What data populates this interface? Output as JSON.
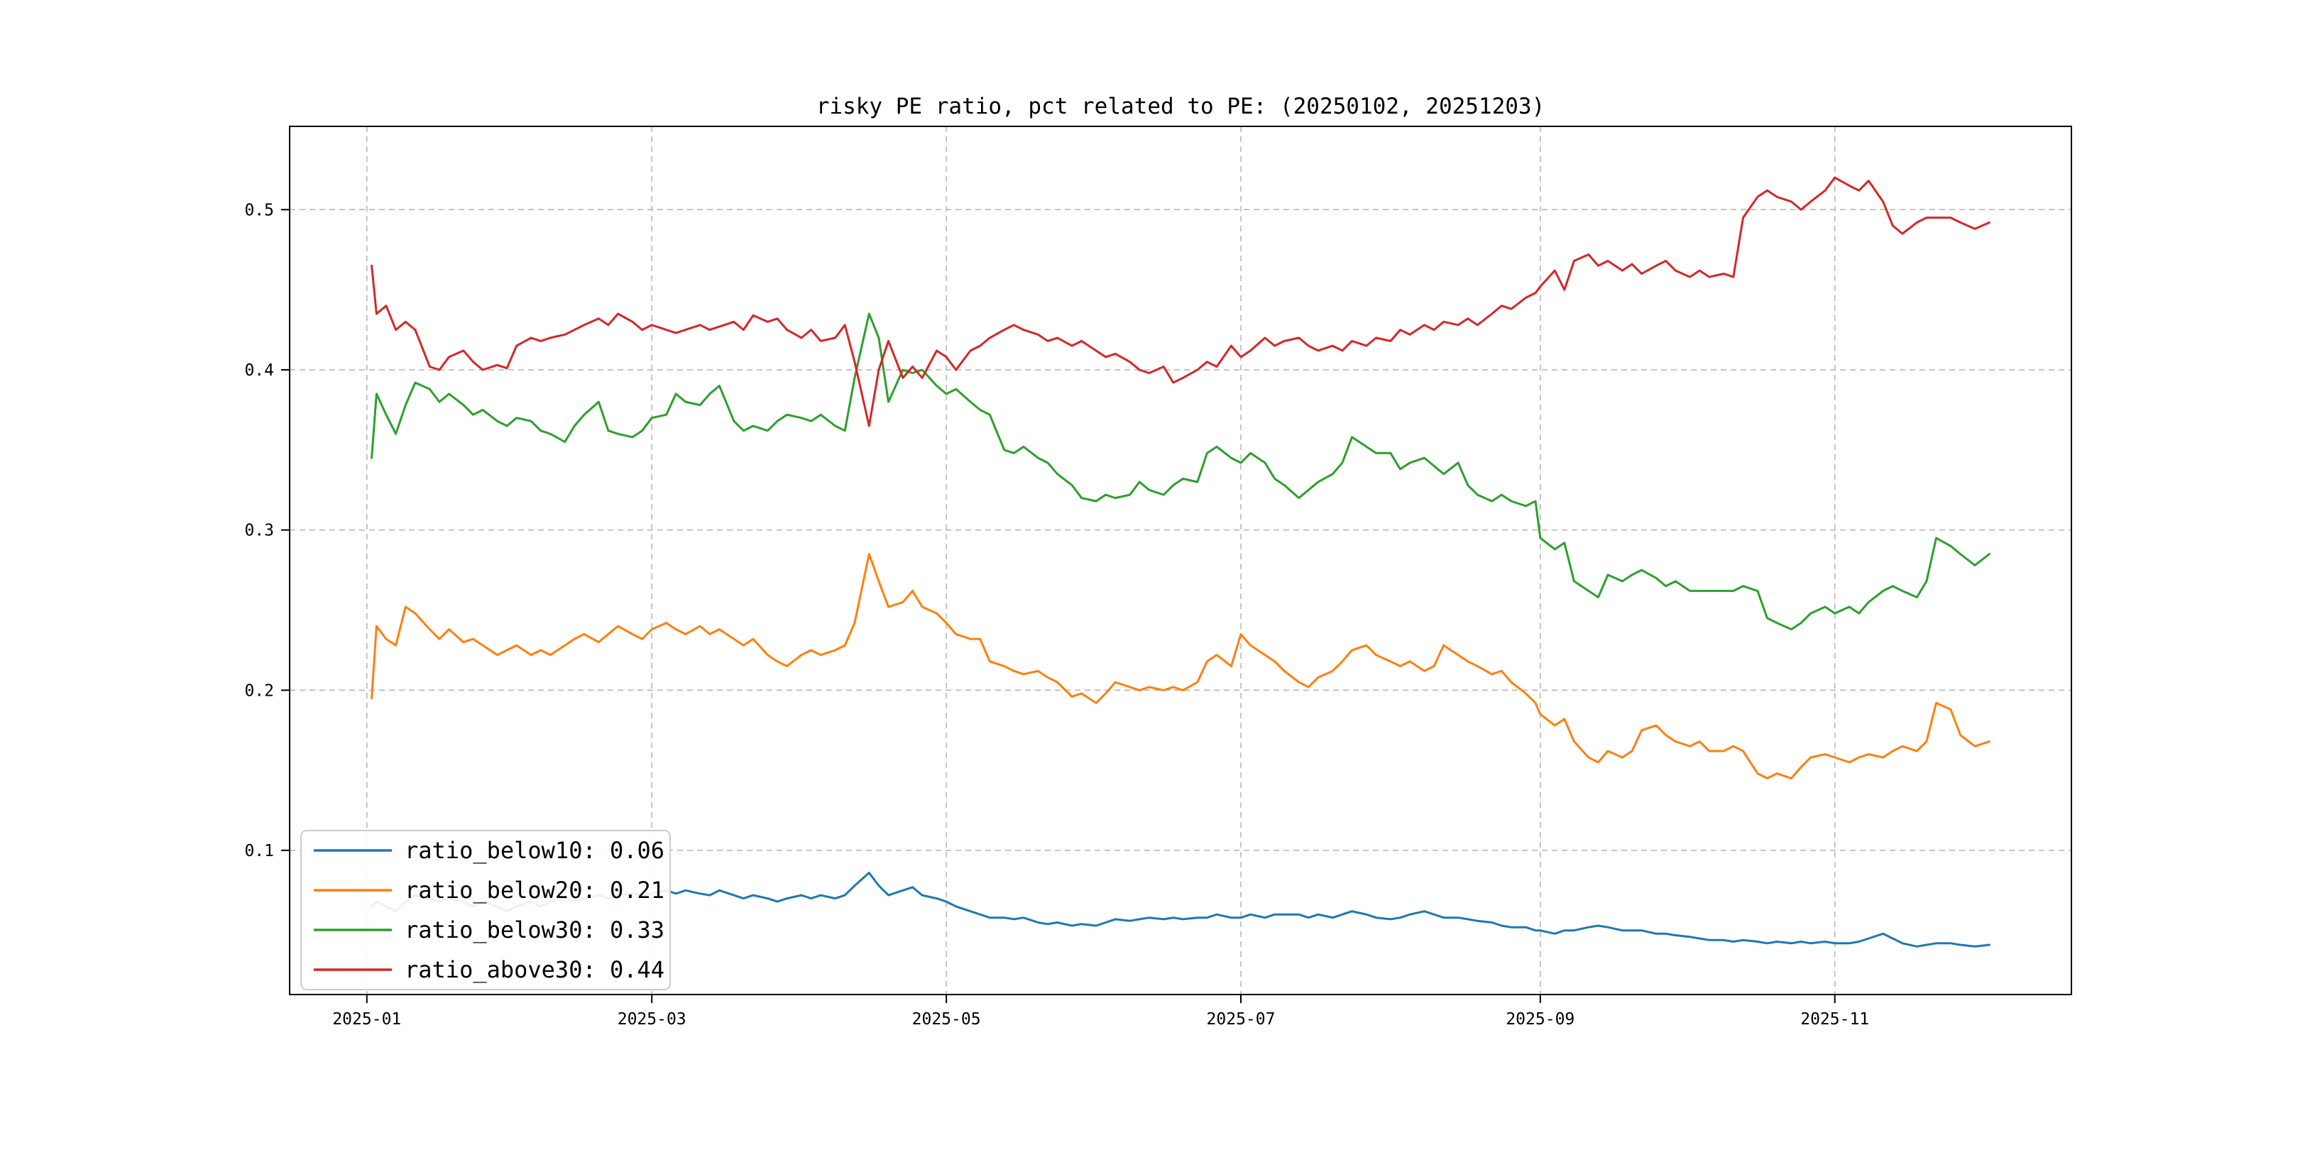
{
  "page": {
    "background": "#ffffff"
  },
  "chart_data": {
    "type": "line",
    "title": "risky PE ratio, pct related to PE: (20250102, 20251203)",
    "xlabel": "",
    "ylabel": "",
    "x_unit": "days since 2025-01-01",
    "xlim": [
      -16,
      353
    ],
    "ylim": [
      0.01,
      0.552
    ],
    "grid": {
      "visible": true,
      "style": "dashed",
      "color": "#b3b3b3"
    },
    "legend": {
      "position": "lower left"
    },
    "xticks": [
      {
        "pos": 0,
        "label": "2025-01"
      },
      {
        "pos": 59,
        "label": "2025-03"
      },
      {
        "pos": 120,
        "label": "2025-05"
      },
      {
        "pos": 181,
        "label": "2025-07"
      },
      {
        "pos": 243,
        "label": "2025-09"
      },
      {
        "pos": 304,
        "label": "2025-11"
      }
    ],
    "yticks": [
      {
        "pos": 0.1,
        "label": "0.1"
      },
      {
        "pos": 0.2,
        "label": "0.2"
      },
      {
        "pos": 0.3,
        "label": "0.3"
      },
      {
        "pos": 0.4,
        "label": "0.4"
      },
      {
        "pos": 0.5,
        "label": "0.5"
      }
    ],
    "x": [
      1,
      2,
      4,
      6,
      8,
      10,
      13,
      15,
      17,
      20,
      22,
      24,
      27,
      29,
      31,
      34,
      36,
      38,
      41,
      43,
      45,
      48,
      50,
      52,
      55,
      57,
      59,
      62,
      64,
      66,
      69,
      71,
      73,
      76,
      78,
      80,
      83,
      85,
      87,
      90,
      92,
      94,
      97,
      99,
      101,
      104,
      106,
      108,
      111,
      113,
      115,
      118,
      120,
      122,
      125,
      127,
      129,
      132,
      134,
      136,
      139,
      141,
      143,
      146,
      148,
      151,
      153,
      155,
      158,
      160,
      162,
      165,
      167,
      169,
      172,
      174,
      176,
      179,
      181,
      183,
      186,
      188,
      190,
      193,
      195,
      197,
      200,
      202,
      204,
      207,
      209,
      212,
      214,
      216,
      219,
      221,
      223,
      226,
      228,
      230,
      233,
      235,
      237,
      240,
      242,
      243,
      246,
      248,
      250,
      253,
      255,
      257,
      260,
      262,
      264,
      267,
      269,
      271,
      274,
      276,
      278,
      281,
      283,
      285,
      288,
      290,
      292,
      295,
      297,
      299,
      302,
      304,
      307,
      309,
      311,
      314,
      316,
      318,
      321,
      323,
      325,
      328,
      330,
      333,
      336
    ],
    "series": [
      {
        "name": "ratio_below10",
        "label": "ratio_below10: 0.06",
        "color": "#1f77b4",
        "values": [
          0.065,
          0.068,
          0.065,
          0.062,
          0.068,
          0.072,
          0.07,
          0.068,
          0.07,
          0.068,
          0.065,
          0.068,
          0.065,
          0.062,
          0.065,
          0.068,
          0.065,
          0.068,
          0.07,
          0.068,
          0.07,
          0.072,
          0.07,
          0.072,
          0.073,
          0.072,
          0.073,
          0.075,
          0.073,
          0.075,
          0.073,
          0.072,
          0.075,
          0.072,
          0.07,
          0.072,
          0.07,
          0.068,
          0.07,
          0.072,
          0.07,
          0.072,
          0.07,
          0.072,
          0.078,
          0.086,
          0.078,
          0.072,
          0.075,
          0.077,
          0.072,
          0.07,
          0.068,
          0.065,
          0.062,
          0.06,
          0.058,
          0.058,
          0.057,
          0.058,
          0.055,
          0.054,
          0.055,
          0.053,
          0.054,
          0.053,
          0.055,
          0.057,
          0.056,
          0.057,
          0.058,
          0.057,
          0.058,
          0.057,
          0.058,
          0.058,
          0.06,
          0.058,
          0.058,
          0.06,
          0.058,
          0.06,
          0.06,
          0.06,
          0.058,
          0.06,
          0.058,
          0.06,
          0.062,
          0.06,
          0.058,
          0.057,
          0.058,
          0.06,
          0.062,
          0.06,
          0.058,
          0.058,
          0.057,
          0.056,
          0.055,
          0.053,
          0.052,
          0.052,
          0.05,
          0.05,
          0.048,
          0.05,
          0.05,
          0.052,
          0.053,
          0.052,
          0.05,
          0.05,
          0.05,
          0.048,
          0.048,
          0.047,
          0.046,
          0.045,
          0.044,
          0.044,
          0.043,
          0.044,
          0.043,
          0.042,
          0.043,
          0.042,
          0.043,
          0.042,
          0.043,
          0.042,
          0.042,
          0.043,
          0.045,
          0.048,
          0.045,
          0.042,
          0.04,
          0.041,
          0.042,
          0.042,
          0.041,
          0.04,
          0.041
        ]
      },
      {
        "name": "ratio_below20",
        "label": "ratio_below20: 0.21",
        "color": "#ff7f0e",
        "values": [
          0.195,
          0.24,
          0.232,
          0.228,
          0.252,
          0.248,
          0.238,
          0.232,
          0.238,
          0.23,
          0.232,
          0.228,
          0.222,
          0.225,
          0.228,
          0.222,
          0.225,
          0.222,
          0.228,
          0.232,
          0.235,
          0.23,
          0.235,
          0.24,
          0.235,
          0.232,
          0.238,
          0.242,
          0.238,
          0.235,
          0.24,
          0.235,
          0.238,
          0.232,
          0.228,
          0.232,
          0.222,
          0.218,
          0.215,
          0.222,
          0.225,
          0.222,
          0.225,
          0.228,
          0.242,
          0.285,
          0.268,
          0.252,
          0.255,
          0.262,
          0.252,
          0.248,
          0.242,
          0.235,
          0.232,
          0.232,
          0.218,
          0.215,
          0.212,
          0.21,
          0.212,
          0.208,
          0.205,
          0.196,
          0.198,
          0.192,
          0.198,
          0.205,
          0.202,
          0.2,
          0.202,
          0.2,
          0.202,
          0.2,
          0.205,
          0.218,
          0.222,
          0.215,
          0.235,
          0.228,
          0.222,
          0.218,
          0.212,
          0.205,
          0.202,
          0.208,
          0.212,
          0.218,
          0.225,
          0.228,
          0.222,
          0.218,
          0.215,
          0.218,
          0.212,
          0.215,
          0.228,
          0.222,
          0.218,
          0.215,
          0.21,
          0.212,
          0.205,
          0.198,
          0.192,
          0.185,
          0.178,
          0.182,
          0.168,
          0.158,
          0.155,
          0.162,
          0.158,
          0.162,
          0.175,
          0.178,
          0.172,
          0.168,
          0.165,
          0.168,
          0.162,
          0.162,
          0.165,
          0.162,
          0.148,
          0.145,
          0.148,
          0.145,
          0.152,
          0.158,
          0.16,
          0.158,
          0.155,
          0.158,
          0.16,
          0.158,
          0.162,
          0.165,
          0.162,
          0.168,
          0.192,
          0.188,
          0.172,
          0.165,
          0.168
        ]
      },
      {
        "name": "ratio_below30",
        "label": "ratio_below30: 0.33",
        "color": "#2ca02c",
        "values": [
          0.345,
          0.385,
          0.372,
          0.36,
          0.378,
          0.392,
          0.388,
          0.38,
          0.385,
          0.378,
          0.372,
          0.375,
          0.368,
          0.365,
          0.37,
          0.368,
          0.362,
          0.36,
          0.355,
          0.365,
          0.372,
          0.38,
          0.362,
          0.36,
          0.358,
          0.362,
          0.37,
          0.372,
          0.385,
          0.38,
          0.378,
          0.385,
          0.39,
          0.368,
          0.362,
          0.365,
          0.362,
          0.368,
          0.372,
          0.37,
          0.368,
          0.372,
          0.365,
          0.362,
          0.395,
          0.435,
          0.42,
          0.38,
          0.4,
          0.398,
          0.4,
          0.39,
          0.385,
          0.388,
          0.38,
          0.375,
          0.372,
          0.35,
          0.348,
          0.352,
          0.345,
          0.342,
          0.335,
          0.328,
          0.32,
          0.318,
          0.322,
          0.32,
          0.322,
          0.33,
          0.325,
          0.322,
          0.328,
          0.332,
          0.33,
          0.348,
          0.352,
          0.345,
          0.342,
          0.348,
          0.342,
          0.332,
          0.328,
          0.32,
          0.325,
          0.33,
          0.335,
          0.342,
          0.358,
          0.352,
          0.348,
          0.348,
          0.338,
          0.342,
          0.345,
          0.34,
          0.335,
          0.342,
          0.328,
          0.322,
          0.318,
          0.322,
          0.318,
          0.315,
          0.318,
          0.295,
          0.288,
          0.292,
          0.268,
          0.262,
          0.258,
          0.272,
          0.268,
          0.272,
          0.275,
          0.27,
          0.265,
          0.268,
          0.262,
          0.262,
          0.262,
          0.262,
          0.262,
          0.265,
          0.262,
          0.245,
          0.242,
          0.238,
          0.242,
          0.248,
          0.252,
          0.248,
          0.252,
          0.248,
          0.255,
          0.262,
          0.265,
          0.262,
          0.258,
          0.268,
          0.295,
          0.29,
          0.285,
          0.278,
          0.285
        ]
      },
      {
        "name": "ratio_above30",
        "label": "ratio_above30: 0.44",
        "color": "#d62728",
        "values": [
          0.465,
          0.435,
          0.44,
          0.425,
          0.43,
          0.425,
          0.402,
          0.4,
          0.408,
          0.412,
          0.405,
          0.4,
          0.403,
          0.401,
          0.415,
          0.42,
          0.418,
          0.42,
          0.422,
          0.425,
          0.428,
          0.432,
          0.428,
          0.435,
          0.43,
          0.425,
          0.428,
          0.425,
          0.423,
          0.425,
          0.428,
          0.425,
          0.427,
          0.43,
          0.425,
          0.434,
          0.43,
          0.432,
          0.425,
          0.42,
          0.425,
          0.418,
          0.42,
          0.428,
          0.405,
          0.365,
          0.4,
          0.418,
          0.395,
          0.402,
          0.395,
          0.412,
          0.408,
          0.4,
          0.412,
          0.415,
          0.42,
          0.425,
          0.428,
          0.425,
          0.422,
          0.418,
          0.42,
          0.415,
          0.418,
          0.412,
          0.408,
          0.41,
          0.405,
          0.4,
          0.398,
          0.402,
          0.392,
          0.395,
          0.4,
          0.405,
          0.402,
          0.415,
          0.408,
          0.412,
          0.42,
          0.415,
          0.418,
          0.42,
          0.415,
          0.412,
          0.415,
          0.412,
          0.418,
          0.415,
          0.42,
          0.418,
          0.425,
          0.422,
          0.428,
          0.425,
          0.43,
          0.428,
          0.432,
          0.428,
          0.435,
          0.44,
          0.438,
          0.445,
          0.448,
          0.452,
          0.462,
          0.45,
          0.468,
          0.472,
          0.465,
          0.468,
          0.462,
          0.466,
          0.46,
          0.465,
          0.468,
          0.462,
          0.458,
          0.462,
          0.458,
          0.46,
          0.458,
          0.495,
          0.508,
          0.512,
          0.508,
          0.505,
          0.5,
          0.505,
          0.512,
          0.52,
          0.515,
          0.512,
          0.518,
          0.505,
          0.49,
          0.485,
          0.492,
          0.495,
          0.495,
          0.495,
          0.492,
          0.488,
          0.492
        ]
      }
    ]
  }
}
